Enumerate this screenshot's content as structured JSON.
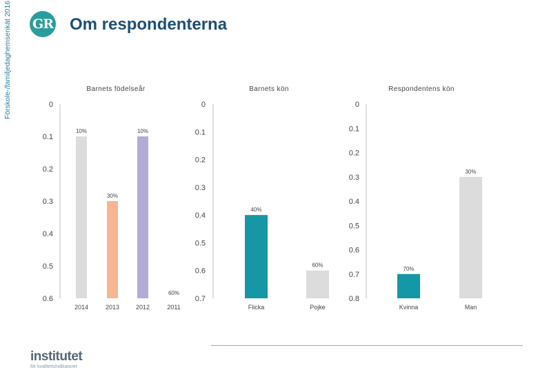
{
  "header": {
    "side_label": "Förskole-/familjedaghemsenkät 2016",
    "logo_text": "GR",
    "title": "Om respondenterna"
  },
  "footer": {
    "brand_main": "institutet",
    "brand_sub": "för kvalitetsindikatorer"
  },
  "colors": {
    "gray": "#dcdcdc",
    "peach": "#f7b592",
    "lavender": "#b4acd6",
    "salmon": "#e3897a",
    "teal": "#1597a5"
  },
  "chart_data": [
    {
      "type": "bar",
      "title": "Barnets födelseår",
      "categories": [
        "2014",
        "2013",
        "2012",
        "2011"
      ],
      "values": [
        0.1,
        0.3,
        0.1,
        0.6
      ],
      "data_labels": [
        "10%",
        "30%",
        "10%",
        "60%"
      ],
      "y_ticks": [
        "0",
        "0.1",
        "0.2",
        "0.3",
        "0.4",
        "0.5",
        "0.6"
      ],
      "ylim": [
        0,
        0.6
      ],
      "y_inverted": true,
      "bar_colors": [
        "#dcdcdc",
        "#f7b592",
        "#b4acd6",
        "#e3897a"
      ]
    },
    {
      "type": "bar",
      "title": "Barnets kön",
      "categories": [
        "Flicka",
        "Pojke"
      ],
      "values": [
        0.4,
        0.6
      ],
      "data_labels": [
        "40%",
        "60%"
      ],
      "y_ticks": [
        "0",
        "0.1",
        "0.2",
        "0.3",
        "0.4",
        "0.5",
        "0.6",
        "0.7"
      ],
      "ylim": [
        0,
        0.7
      ],
      "y_inverted": true,
      "bar_colors": [
        "#1597a5",
        "#dcdcdc"
      ]
    },
    {
      "type": "bar",
      "title": "Respondentens kön",
      "categories": [
        "Kvinna",
        "Man"
      ],
      "values": [
        0.7,
        0.3
      ],
      "data_labels": [
        "70%",
        "30%"
      ],
      "y_ticks": [
        "0",
        "0.1",
        "0.2",
        "0.3",
        "0.4",
        "0.5",
        "0.6",
        "0.7",
        "0.8"
      ],
      "ylim": [
        0,
        0.8
      ],
      "y_inverted": true,
      "bar_colors": [
        "#1597a5",
        "#dcdcdc"
      ]
    }
  ]
}
